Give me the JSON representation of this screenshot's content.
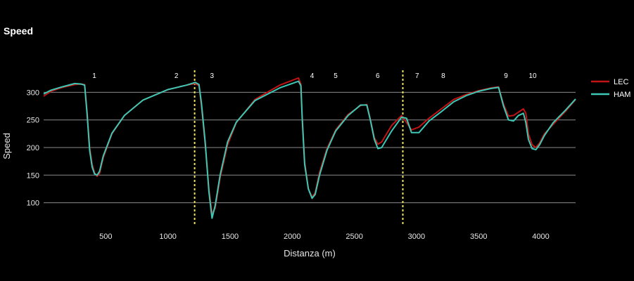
{
  "chart_data": {
    "type": "line",
    "title": "Speed",
    "xlabel": "Distanza (m)",
    "ylabel": "Speed",
    "xlim": [
      0,
      4280
    ],
    "ylim": [
      60,
      340
    ],
    "x_ticks": [
      500,
      1000,
      1500,
      2000,
      2500,
      3000,
      3500,
      4000
    ],
    "y_ticks": [
      100,
      150,
      200,
      250,
      300
    ],
    "grid": "horizontal",
    "legend_position": "right",
    "sector_lines": {
      "color": "#f1e05a",
      "x": [
        1215,
        2890
      ]
    },
    "corners": [
      {
        "label": "1",
        "x": 408
      },
      {
        "label": "2",
        "x": 1068
      },
      {
        "label": "3",
        "x": 1355
      },
      {
        "label": "4",
        "x": 2160
      },
      {
        "label": "5",
        "x": 2350
      },
      {
        "label": "6",
        "x": 2688
      },
      {
        "label": "7",
        "x": 3005
      },
      {
        "label": "8",
        "x": 3215
      },
      {
        "label": "9",
        "x": 3720
      },
      {
        "label": "10",
        "x": 3935
      }
    ],
    "series": [
      {
        "name": "LEC",
        "color": "#c21414",
        "x": [
          0,
          60,
          150,
          250,
          300,
          330,
          350,
          370,
          390,
          410,
          430,
          450,
          480,
          550,
          650,
          800,
          1000,
          1150,
          1220,
          1250,
          1270,
          1300,
          1330,
          1355,
          1380,
          1420,
          1480,
          1550,
          1700,
          1900,
          2050,
          2070,
          2080,
          2100,
          2130,
          2160,
          2185,
          2220,
          2280,
          2350,
          2450,
          2550,
          2600,
          2630,
          2660,
          2690,
          2720,
          2800,
          2880,
          2920,
          2960,
          3020,
          3100,
          3200,
          3300,
          3400,
          3500,
          3600,
          3660,
          3700,
          3740,
          3780,
          3820,
          3860,
          3880,
          3900,
          3930,
          3960,
          3990,
          4030,
          4100,
          4200,
          4280
        ],
        "y": [
          293,
          302,
          309,
          314,
          315,
          314,
          265,
          200,
          170,
          154,
          148,
          153,
          182,
          225,
          258,
          286,
          305,
          313,
          316,
          312,
          275,
          205,
          125,
          80,
          90,
          145,
          205,
          245,
          287,
          313,
          326,
          315,
          260,
          175,
          125,
          110,
          118,
          155,
          198,
          232,
          260,
          276,
          278,
          250,
          218,
          206,
          210,
          240,
          258,
          245,
          232,
          237,
          253,
          270,
          287,
          296,
          303,
          308,
          310,
          278,
          257,
          258,
          264,
          270,
          262,
          225,
          205,
          200,
          208,
          225,
          242,
          266,
          287
        ]
      },
      {
        "name": "HAM",
        "color": "#3dc7b5",
        "x": [
          0,
          60,
          150,
          250,
          300,
          330,
          350,
          370,
          390,
          410,
          430,
          450,
          480,
          550,
          650,
          800,
          1000,
          1150,
          1220,
          1250,
          1270,
          1300,
          1330,
          1355,
          1380,
          1420,
          1480,
          1550,
          1700,
          1900,
          2050,
          2070,
          2080,
          2100,
          2130,
          2160,
          2185,
          2220,
          2280,
          2350,
          2450,
          2550,
          2600,
          2630,
          2660,
          2690,
          2720,
          2800,
          2880,
          2920,
          2960,
          3020,
          3100,
          3200,
          3300,
          3400,
          3500,
          3600,
          3660,
          3700,
          3740,
          3780,
          3820,
          3860,
          3880,
          3900,
          3930,
          3960,
          3990,
          4030,
          4100,
          4200,
          4280
        ],
        "y": [
          297,
          304,
          310,
          316,
          315,
          313,
          260,
          195,
          165,
          152,
          150,
          157,
          185,
          226,
          258,
          286,
          305,
          313,
          318,
          314,
          280,
          210,
          120,
          72,
          95,
          150,
          210,
          246,
          285,
          308,
          320,
          312,
          255,
          170,
          125,
          108,
          115,
          150,
          195,
          230,
          258,
          277,
          277,
          248,
          215,
          198,
          200,
          230,
          255,
          253,
          227,
          227,
          248,
          265,
          283,
          294,
          302,
          307,
          309,
          275,
          250,
          248,
          258,
          262,
          245,
          215,
          198,
          196,
          205,
          222,
          245,
          268,
          288
        ]
      }
    ]
  }
}
